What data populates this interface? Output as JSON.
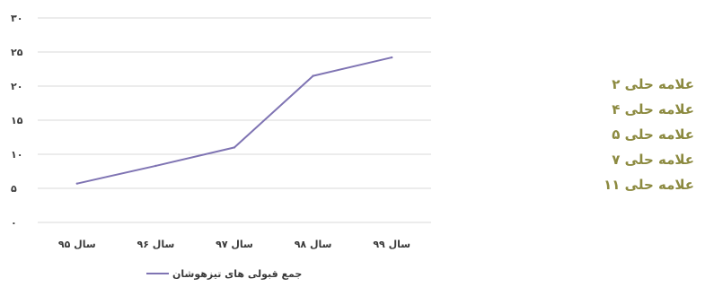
{
  "chart_data": {
    "type": "line",
    "categories": [
      "سال ۹۵",
      "سال ۹۶",
      "سال ۹۷",
      "سال ۹۸",
      "سال ۹۹"
    ],
    "series": [
      {
        "name": "جمع قبولی های تیزهوشان",
        "values": [
          5.7,
          8.3,
          11.0,
          21.5,
          24.2
        ]
      }
    ],
    "y_ticks": [
      0,
      5,
      10,
      15,
      20,
      25,
      30
    ],
    "y_tick_labels": [
      "۰",
      "۵",
      "۱۰",
      "۱۵",
      "۲۰",
      "۲۵",
      "۳۰"
    ],
    "ylim": [
      0,
      30
    ],
    "grid": true,
    "legend_position": "bottom",
    "line_color": "#7f74b3",
    "grid_color": "#d9d9d9"
  },
  "side_list": {
    "items": [
      "علامه حلی ۲",
      "علامه حلی ۴",
      "علامه حلی ۵",
      "علامه حلی ۷",
      "علامه حلی ۱۱"
    ]
  }
}
